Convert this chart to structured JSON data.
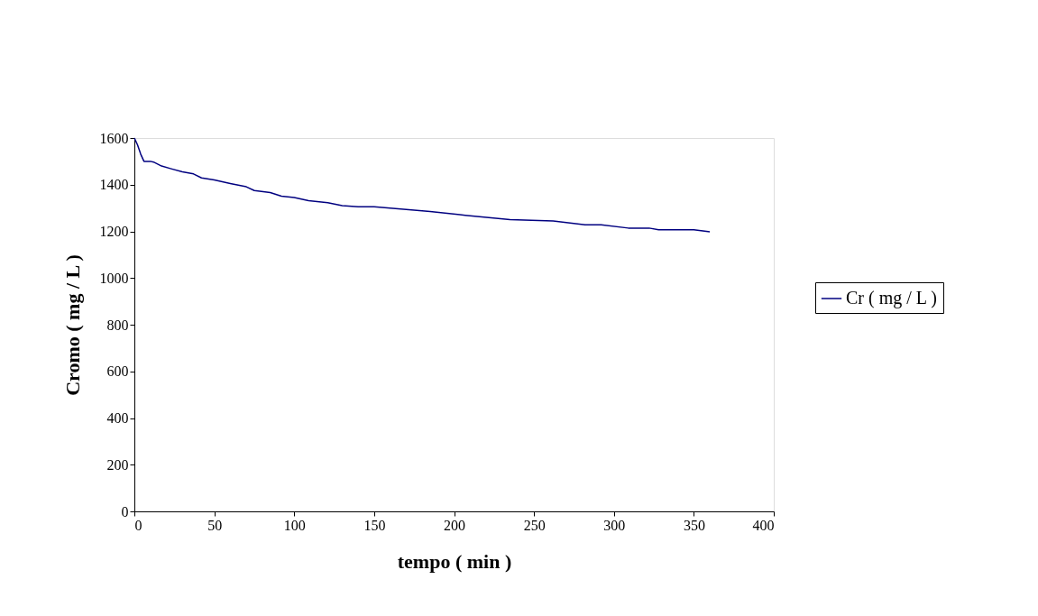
{
  "chart_data": {
    "type": "line",
    "xlabel": "tempo ( min )",
    "ylabel": "Cromo ( mg / L )",
    "xlim": [
      0,
      400
    ],
    "xticks": [
      0,
      50,
      100,
      150,
      200,
      250,
      300,
      350,
      400
    ],
    "ylim": [
      0,
      1600
    ],
    "yticks": [
      0,
      200,
      400,
      600,
      800,
      1000,
      1200,
      1400,
      1600
    ],
    "grid": false,
    "legend": "right",
    "marker": "none",
    "line_style": "solid",
    "series": [
      {
        "name": "Cr ( mg / L )",
        "color": "#000080",
        "x": [
          0,
          2,
          4,
          6,
          10,
          12,
          17,
          23,
          30,
          37,
          42,
          50,
          60,
          70,
          75,
          85,
          92,
          100,
          109,
          121,
          130,
          140,
          150,
          185,
          207,
          235,
          262,
          282,
          292,
          309,
          322,
          328,
          350,
          360
        ],
        "values": [
          1600,
          1570,
          1530,
          1500,
          1500,
          1497,
          1480,
          1468,
          1455,
          1446,
          1429,
          1420,
          1405,
          1391,
          1375,
          1366,
          1351,
          1345,
          1331,
          1323,
          1310,
          1305,
          1305,
          1285,
          1269,
          1250,
          1244,
          1228,
          1228,
          1214,
          1214,
          1207,
          1207,
          1198
        ]
      }
    ]
  }
}
